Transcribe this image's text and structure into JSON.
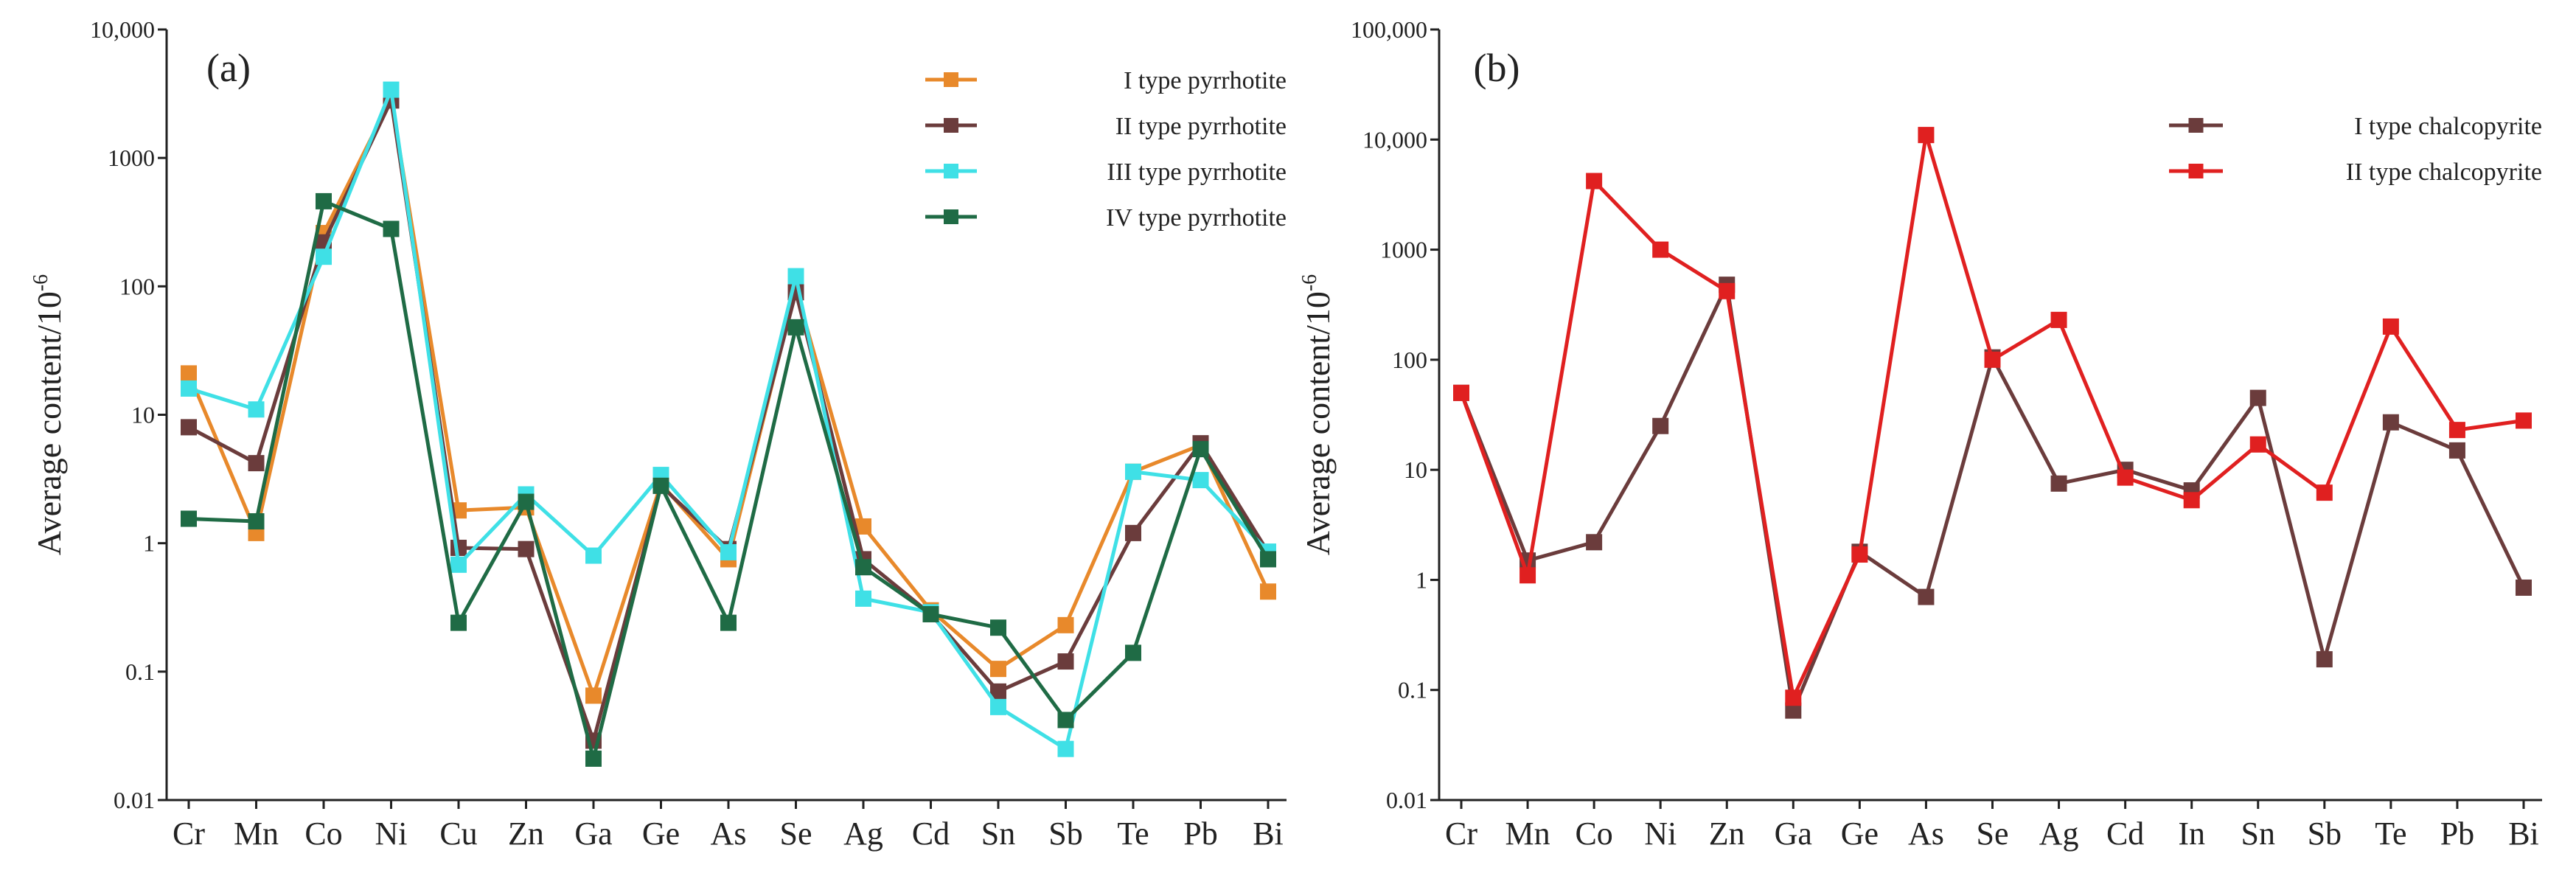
{
  "chart_data": [
    {
      "type": "line",
      "panel_label": "(a)",
      "ylabel": "Average content/10",
      "ylabel_exp": "-6",
      "yscale": "log",
      "ylim": [
        0.01,
        10000
      ],
      "ytick_values": [
        0.01,
        0.1,
        1,
        10,
        100,
        1000,
        10000
      ],
      "ytick_labels": [
        "0.01",
        "0.1",
        "1",
        "10",
        "100",
        "1000",
        "10,000"
      ],
      "categories": [
        "Cr",
        "Mn",
        "Co",
        "Ni",
        "Cu",
        "Zn",
        "Ga",
        "Ge",
        "As",
        "Se",
        "Ag",
        "Cd",
        "Sn",
        "Sb",
        "Te",
        "Pb",
        "Bi"
      ],
      "legend_position": "top-right",
      "grid": false,
      "series": [
        {
          "name": "I  type  pyrrhotite",
          "color": "#E8892B",
          "values": [
            21,
            1.2,
            260,
            2900,
            1.8,
            1.9,
            0.065,
            2.9,
            0.75,
            95,
            1.35,
            0.3,
            0.105,
            0.23,
            3.6,
            5.8,
            0.42
          ]
        },
        {
          "name": "II  type  pyrrhotite",
          "color": "#6B3C3C",
          "values": [
            8,
            4.2,
            220,
            2800,
            0.92,
            0.9,
            0.029,
            2.8,
            0.9,
            90,
            0.75,
            0.28,
            0.07,
            0.12,
            1.2,
            6.0,
            0.85
          ]
        },
        {
          "name": "III  type  pyrrhotite",
          "color": "#3FE0E6",
          "values": [
            16,
            11,
            170,
            3400,
            0.68,
            2.4,
            0.8,
            3.4,
            0.85,
            120,
            0.37,
            0.29,
            0.053,
            0.025,
            3.6,
            3.1,
            0.86
          ]
        },
        {
          "name": "IV  type  pyrrhotite",
          "color": "#1F6B45",
          "values": [
            1.55,
            1.48,
            460,
            280,
            0.24,
            2.1,
            0.021,
            2.8,
            0.24,
            48,
            0.65,
            0.28,
            0.22,
            0.042,
            0.14,
            5.4,
            0.75
          ]
        }
      ]
    },
    {
      "type": "line",
      "panel_label": "(b)",
      "ylabel": "Average content/10",
      "ylabel_exp": "-6",
      "yscale": "log",
      "ylim": [
        0.01,
        100000
      ],
      "ytick_values": [
        0.01,
        0.1,
        1,
        10,
        100,
        1000,
        10000,
        100000
      ],
      "ytick_labels": [
        "0.01",
        "0.1",
        "1",
        "10",
        "100",
        "1000",
        "10,000",
        "100,000"
      ],
      "categories": [
        "Cr",
        "Mn",
        "Co",
        "Ni",
        "Zn",
        "Ga",
        "Ge",
        "As",
        "Se",
        "Ag",
        "Cd",
        "In",
        "Sn",
        "Sb",
        "Te",
        "Pb",
        "Bi"
      ],
      "legend_position": "top-right",
      "grid": false,
      "series": [
        {
          "name": "I  type  chalcopyrite",
          "color": "#6B3C3C",
          "values": [
            50,
            1.5,
            2.2,
            25,
            480,
            0.065,
            1.8,
            0.7,
            105,
            7.5,
            10,
            6.5,
            45,
            0.19,
            27,
            15,
            0.85
          ]
        },
        {
          "name": "II  type  chalcopyrite",
          "color": "#E02020",
          "values": [
            50,
            1.1,
            4200,
            1000,
            420,
            0.085,
            1.7,
            11000,
            100,
            230,
            8.5,
            5.3,
            17,
            6.2,
            200,
            23,
            28
          ]
        }
      ]
    }
  ]
}
